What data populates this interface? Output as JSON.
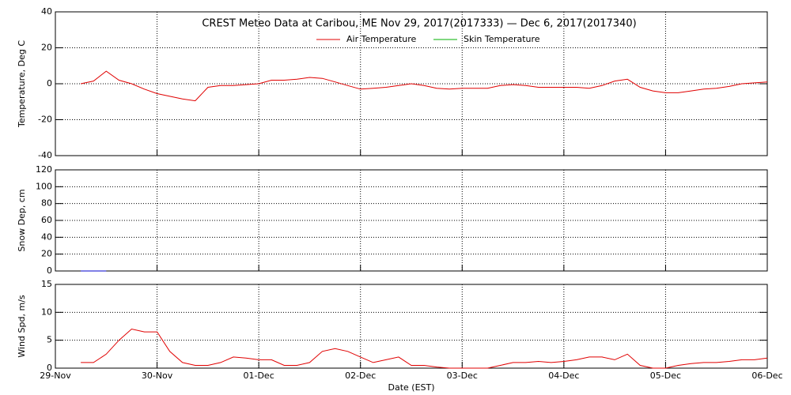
{
  "chart_data": [
    {
      "type": "line",
      "title": "CREST Meteo Data at Caribou, ME   Nov 29, 2017(2017333) — Dec  6, 2017(2017340)",
      "ylabel": "Temperature, Deg C",
      "x": [
        0.25,
        0.375,
        0.5,
        0.625,
        0.75,
        0.875,
        1,
        1.125,
        1.25,
        1.375,
        1.5,
        1.625,
        1.75,
        1.875,
        2,
        2.125,
        2.25,
        2.375,
        2.5,
        2.625,
        2.75,
        2.875,
        3,
        3.125,
        3.25,
        3.375,
        3.5,
        3.625,
        3.75,
        3.875,
        4,
        4.125,
        4.25,
        4.375,
        4.5,
        4.625,
        4.75,
        4.875,
        5,
        5.125,
        5.25,
        5.375,
        5.5,
        5.625,
        5.75,
        5.875,
        6,
        6.125,
        6.25,
        6.375,
        6.5,
        6.625,
        6.75,
        6.875,
        7
      ],
      "series": [
        {
          "name": "Air Temperature",
          "color": "#e00000",
          "values": [
            0,
            1.5,
            7,
            2,
            0,
            -3,
            -5.5,
            -7,
            -8.5,
            -9.5,
            -2,
            -1,
            -1,
            -0.5,
            0,
            2,
            2,
            2.5,
            3.5,
            3,
            1,
            -1,
            -3,
            -2.5,
            -2,
            -1,
            0,
            -1,
            -2.5,
            -3,
            -2.5,
            -2.5,
            -2.5,
            -1,
            -0.5,
            -1,
            -2,
            -2,
            -2,
            -2,
            -2.5,
            -1,
            1.5,
            2.5,
            -2,
            -4,
            -5,
            -5,
            -4,
            -3,
            -2.5,
            -1.5,
            0,
            0.5,
            1
          ]
        },
        {
          "name": "Skin Temperature",
          "color": "#00b000",
          "values": [
            null,
            null,
            null,
            null,
            null,
            null,
            null,
            null,
            null,
            null,
            null,
            null,
            null,
            null,
            null,
            null,
            null,
            null,
            null,
            null,
            null,
            null,
            null,
            null,
            null,
            null,
            null,
            null,
            null,
            null,
            null,
            null,
            null,
            null,
            null,
            null,
            null,
            null,
            null,
            null,
            null,
            null,
            null,
            null,
            null,
            null,
            null,
            null,
            null,
            null,
            null,
            null,
            null,
            null,
            null
          ]
        }
      ],
      "xlim": [
        0,
        7
      ],
      "xticks": [
        0,
        1,
        2,
        3,
        4,
        5,
        6,
        7
      ],
      "ylim": [
        -40,
        40
      ],
      "yticks": [
        -40,
        -20,
        0,
        20,
        40
      ],
      "grid": true
    },
    {
      "type": "line",
      "ylabel": "Snow Dep, cm",
      "x": [
        0.25,
        0.3,
        0.35,
        0.4,
        0.45,
        0.5
      ],
      "values": [
        0,
        0,
        0,
        0,
        0,
        0
      ],
      "color": "#0000cc",
      "xlim": [
        0,
        7
      ],
      "xticks": [
        0,
        1,
        2,
        3,
        4,
        5,
        6,
        7
      ],
      "ylim": [
        0,
        120
      ],
      "yticks": [
        0,
        20,
        40,
        60,
        80,
        100,
        120
      ],
      "grid": true
    },
    {
      "type": "line",
      "ylabel": "Wind Spd, m/s",
      "xlabel": "Date (EST)",
      "x": [
        0.25,
        0.375,
        0.5,
        0.625,
        0.75,
        0.875,
        1,
        1.125,
        1.25,
        1.375,
        1.5,
        1.625,
        1.75,
        1.875,
        2,
        2.125,
        2.25,
        2.375,
        2.5,
        2.625,
        2.75,
        2.875,
        3,
        3.125,
        3.25,
        3.375,
        3.5,
        3.625,
        3.75,
        3.875,
        4,
        4.125,
        4.25,
        4.375,
        4.5,
        4.625,
        4.75,
        4.875,
        5,
        5.125,
        5.25,
        5.375,
        5.5,
        5.625,
        5.75,
        5.875,
        6,
        6.125,
        6.25,
        6.375,
        6.5,
        6.625,
        6.75,
        6.875,
        7
      ],
      "values": [
        1,
        1,
        2.5,
        5,
        7,
        6.5,
        6.5,
        3,
        1,
        0.5,
        0.5,
        1,
        2,
        1.8,
        1.5,
        1.5,
        0.5,
        0.5,
        1,
        3,
        3.5,
        3,
        2,
        1,
        1.5,
        2,
        0.5,
        0.5,
        0.2,
        0,
        0,
        0,
        0,
        0.5,
        1,
        1,
        1.2,
        1,
        1.2,
        1.5,
        2,
        2,
        1.5,
        2.5,
        0.5,
        0,
        0,
        0.5,
        0.8,
        1,
        1,
        1.2,
        1.5,
        1.5,
        1.8
      ],
      "color": "#e00000",
      "xlim": [
        0,
        7
      ],
      "xticks": [
        {
          "value": 0,
          "label": "29-Nov"
        },
        {
          "value": 1,
          "label": "30-Nov"
        },
        {
          "value": 2,
          "label": "01-Dec"
        },
        {
          "value": 3,
          "label": "02-Dec"
        },
        {
          "value": 4,
          "label": "03-Dec"
        },
        {
          "value": 5,
          "label": "04-Dec"
        },
        {
          "value": 6,
          "label": "05-Dec"
        },
        {
          "value": 7,
          "label": "06-Dec"
        }
      ],
      "ylim": [
        0,
        15
      ],
      "yticks": [
        0,
        5,
        10,
        15
      ],
      "grid": true
    }
  ]
}
